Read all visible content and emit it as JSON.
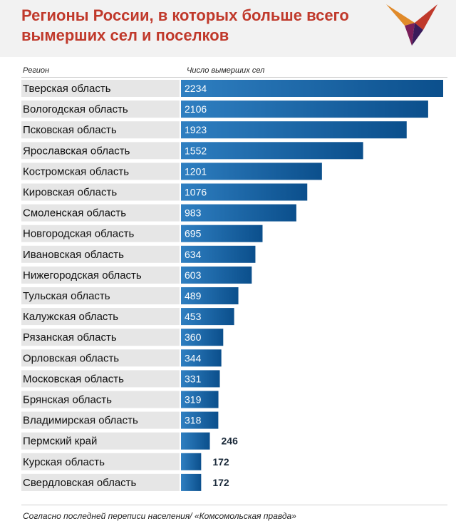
{
  "header": {
    "title": "Регионы России, в которых больше всего вымерших сел и поселков"
  },
  "columns": {
    "region": "Регион",
    "value": "Число вымерших сел"
  },
  "footer": {
    "source": "Согласно последней переписи населения/ «Комсомольская правда»"
  },
  "colors": {
    "title": "#c0392b",
    "bar_light": "#2f7fc1",
    "bar_dark": "#0b4f8c",
    "row_band": "#e6e6e6",
    "value_inside": "#ffffff",
    "value_outside": "#1b2a3a"
  },
  "chart_data": {
    "type": "bar",
    "orientation": "horizontal",
    "categories": [
      "Тверская область",
      "Вологодская область",
      "Псковская область",
      "Ярославская область",
      "Костромская область",
      "Кировская область",
      "Смоленская область",
      "Новгородская область",
      "Ивановская область",
      "Нижегородская область",
      "Тульская область",
      "Калужская область",
      "Рязанская область",
      "Орловская область",
      "Московская область",
      "Брянская область",
      "Владимирская область",
      "Пермский край",
      "Курская область",
      "Свердловская область"
    ],
    "values": [
      2234,
      2106,
      1923,
      1552,
      1201,
      1076,
      983,
      695,
      634,
      603,
      489,
      453,
      360,
      344,
      331,
      319,
      318,
      246,
      172,
      172
    ],
    "xlim": [
      0,
      2234
    ],
    "grid": false,
    "legend": "none"
  }
}
